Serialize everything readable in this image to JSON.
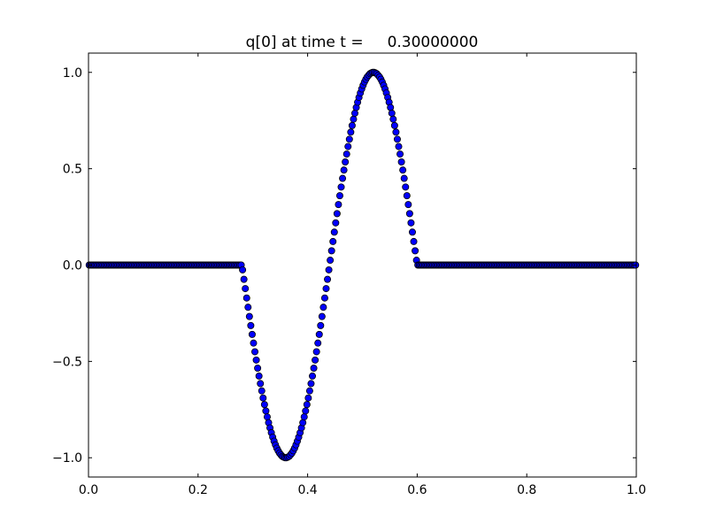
{
  "chart_data": {
    "type": "scatter",
    "title": "q[0] at time t =     0.30000000",
    "xlabel": "",
    "ylabel": "",
    "xlim": [
      0.0,
      1.0
    ],
    "ylim": [
      -1.1,
      1.1
    ],
    "xticks": [
      "0.0",
      "0.2",
      "0.4",
      "0.6",
      "0.8",
      "1.0"
    ],
    "xtick_values": [
      0.0,
      0.2,
      0.4,
      0.6,
      0.8,
      1.0
    ],
    "yticks": [
      "−1.0",
      "−0.5",
      "0.0",
      "0.5",
      "1.0"
    ],
    "ytick_values": [
      -1.0,
      -0.5,
      0.0,
      0.5,
      1.0
    ],
    "grid": false,
    "marker": "circle",
    "marker_color": "#0000ff",
    "marker_edge_color": "#000000",
    "x": {
      "start": 0.00125,
      "stop": 0.99875,
      "count": 400
    },
    "y": [
      0,
      0,
      0,
      0,
      0,
      0,
      0,
      0,
      0,
      0,
      0,
      0,
      0,
      0,
      0,
      0,
      0,
      0,
      0,
      0,
      0,
      0,
      0,
      0,
      0,
      0,
      0,
      0,
      0,
      0,
      0,
      0,
      0,
      0,
      0,
      0,
      0,
      0,
      0,
      0,
      0,
      0,
      0,
      0,
      0,
      0,
      0,
      0,
      0,
      0,
      0,
      0,
      0,
      0,
      0,
      0,
      0,
      0,
      0,
      0,
      0,
      0,
      0,
      0,
      0,
      0,
      0,
      0,
      0,
      0,
      0,
      0,
      0,
      0,
      0,
      0,
      0,
      0,
      0,
      0,
      0,
      0,
      0,
      0,
      0,
      0,
      0,
      0,
      0,
      0,
      0,
      0,
      0,
      0,
      0,
      0,
      0,
      0,
      0,
      0,
      0,
      0,
      0,
      0,
      0,
      0,
      0,
      0,
      0,
      0,
      0,
      0,
      -0.025,
      -0.074,
      -0.122,
      -0.171,
      -0.219,
      -0.267,
      -0.314,
      -0.36,
      -0.405,
      -0.45,
      -0.493,
      -0.535,
      -0.576,
      -0.615,
      -0.653,
      -0.69,
      -0.724,
      -0.757,
      -0.788,
      -0.818,
      -0.845,
      -0.87,
      -0.893,
      -0.914,
      -0.933,
      -0.95,
      -0.964,
      -0.976,
      -0.985,
      -0.993,
      -0.997,
      -1.0,
      -1.0,
      -0.997,
      -0.993,
      -0.985,
      -0.976,
      -0.964,
      -0.95,
      -0.933,
      -0.914,
      -0.893,
      -0.87,
      -0.845,
      -0.818,
      -0.788,
      -0.757,
      -0.724,
      -0.69,
      -0.653,
      -0.615,
      -0.576,
      -0.535,
      -0.493,
      -0.45,
      -0.405,
      -0.36,
      -0.314,
      -0.267,
      -0.219,
      -0.171,
      -0.122,
      -0.074,
      -0.025,
      0.025,
      0.074,
      0.122,
      0.171,
      0.219,
      0.267,
      0.314,
      0.36,
      0.405,
      0.45,
      0.493,
      0.535,
      0.576,
      0.615,
      0.653,
      0.69,
      0.724,
      0.757,
      0.788,
      0.818,
      0.845,
      0.87,
      0.893,
      0.914,
      0.933,
      0.95,
      0.964,
      0.976,
      0.985,
      0.993,
      0.997,
      1.0,
      1.0,
      0.997,
      0.993,
      0.985,
      0.976,
      0.964,
      0.95,
      0.933,
      0.914,
      0.893,
      0.87,
      0.845,
      0.818,
      0.788,
      0.757,
      0.724,
      0.69,
      0.653,
      0.615,
      0.576,
      0.535,
      0.493,
      0.45,
      0.405,
      0.36,
      0.314,
      0.267,
      0.219,
      0.171,
      0.122,
      0.074,
      0.025,
      0,
      0,
      0,
      0,
      0,
      0,
      0,
      0,
      0,
      0,
      0,
      0,
      0,
      0,
      0,
      0,
      0,
      0,
      0,
      0,
      0,
      0,
      0,
      0,
      0,
      0,
      0,
      0,
      0,
      0,
      0,
      0,
      0,
      0,
      0,
      0,
      0,
      0,
      0,
      0,
      0,
      0,
      0,
      0,
      0,
      0,
      0,
      0,
      0,
      0,
      0,
      0,
      0,
      0,
      0,
      0,
      0,
      0,
      0,
      0,
      0,
      0,
      0,
      0,
      0,
      0,
      0,
      0,
      0,
      0,
      0,
      0,
      0,
      0,
      0,
      0,
      0,
      0,
      0,
      0,
      0,
      0,
      0,
      0,
      0,
      0,
      0,
      0,
      0,
      0,
      0,
      0,
      0,
      0,
      0,
      0,
      0,
      0,
      0,
      0,
      0,
      0,
      0,
      0,
      0,
      0,
      0,
      0,
      0,
      0,
      0,
      0,
      0,
      0,
      0,
      0,
      0,
      0,
      0,
      0,
      0,
      0,
      0,
      0,
      0,
      0,
      0,
      0,
      0,
      0,
      0,
      0,
      0,
      0,
      0,
      0,
      0,
      0,
      0,
      0,
      0,
      0,
      0,
      0,
      0,
      0,
      0,
      0,
      0,
      0,
      0,
      0,
      0,
      0,
      0,
      0,
      0,
      0,
      0,
      0
    ]
  }
}
